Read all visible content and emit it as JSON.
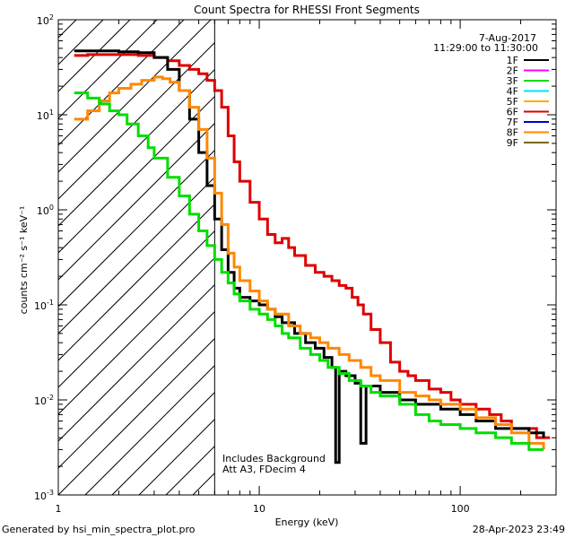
{
  "chart_data": {
    "type": "line",
    "title": "Count Spectra for RHESSI Front Segments",
    "xlabel": "Energy (keV)",
    "ylabel": "counts cm⁻² s⁻¹ keV⁻¹",
    "xscale": "log",
    "yscale": "log",
    "xlim": [
      1,
      300
    ],
    "ylim": [
      0.001,
      100
    ],
    "x_tick_labels": [
      "1",
      "10",
      "100"
    ],
    "y_tick_labels": [
      {
        "base": "10",
        "exp": "-3",
        "value": 0.001
      },
      {
        "base": "10",
        "exp": "-2",
        "value": 0.01
      },
      {
        "base": "10",
        "exp": "-1",
        "value": 0.1
      },
      {
        "base": "10",
        "exp": "0",
        "value": 1
      },
      {
        "base": "10",
        "exp": "1",
        "value": 10
      },
      {
        "base": "10",
        "exp": "2",
        "value": 100
      }
    ],
    "shaded_region": {
      "x_max_kev": 6.0,
      "style": "diagonal-hatch"
    },
    "date_label": "7-Aug-2017",
    "time_range": "11:29:00 to 11:30:00",
    "annotations": [
      "Includes Background",
      "Att A3, FDecim  4"
    ],
    "legend_position": "top-right",
    "legend": [
      {
        "name": "1F",
        "color": "#000000"
      },
      {
        "name": "2F",
        "color": "#ff00ff"
      },
      {
        "name": "3F",
        "color": "#00dd00"
      },
      {
        "name": "4F",
        "color": "#00e5ff"
      },
      {
        "name": "5F",
        "color": "#ffaa00"
      },
      {
        "name": "6F",
        "color": "#dd0000"
      },
      {
        "name": "7F",
        "color": "#0000cc"
      },
      {
        "name": "8F",
        "color": "#ff8800"
      },
      {
        "name": "9F",
        "color": "#7a6a00"
      }
    ],
    "series": [
      {
        "name": "6F",
        "color": "#dd0000",
        "points": [
          [
            1.2,
            42
          ],
          [
            1.4,
            43
          ],
          [
            1.7,
            43
          ],
          [
            2.0,
            43
          ],
          [
            2.5,
            42
          ],
          [
            3.0,
            40
          ],
          [
            3.5,
            37
          ],
          [
            4.0,
            33
          ],
          [
            4.5,
            30
          ],
          [
            5.0,
            27
          ],
          [
            5.5,
            23
          ],
          [
            6.0,
            18
          ],
          [
            6.5,
            12
          ],
          [
            7.0,
            6
          ],
          [
            7.5,
            3.2
          ],
          [
            8.0,
            2.0
          ],
          [
            9.0,
            1.2
          ],
          [
            10.0,
            0.8
          ],
          [
            11.0,
            0.55
          ],
          [
            12.0,
            0.45
          ],
          [
            13.0,
            0.5
          ],
          [
            14.0,
            0.4
          ],
          [
            15.0,
            0.33
          ],
          [
            17.0,
            0.26
          ],
          [
            19.0,
            0.22
          ],
          [
            21.0,
            0.2
          ],
          [
            23.0,
            0.18
          ],
          [
            25.0,
            0.16
          ],
          [
            27.0,
            0.15
          ],
          [
            29.0,
            0.12
          ],
          [
            31.0,
            0.1
          ],
          [
            33.0,
            0.08
          ],
          [
            36.0,
            0.055
          ],
          [
            40.0,
            0.04
          ],
          [
            45.0,
            0.025
          ],
          [
            50.0,
            0.02
          ],
          [
            55.0,
            0.018
          ],
          [
            60.0,
            0.016
          ],
          [
            70.0,
            0.013
          ],
          [
            80.0,
            0.012
          ],
          [
            90.0,
            0.01
          ],
          [
            100.0,
            0.009
          ],
          [
            120.0,
            0.008
          ],
          [
            140.0,
            0.007
          ],
          [
            160.0,
            0.006
          ],
          [
            180.0,
            0.005
          ],
          [
            200.0,
            0.005
          ],
          [
            240.0,
            0.004
          ],
          [
            280.0,
            0.004
          ]
        ]
      },
      {
        "name": "1F",
        "color": "#000000",
        "points": [
          [
            1.2,
            47
          ],
          [
            1.4,
            47
          ],
          [
            1.7,
            47
          ],
          [
            2.0,
            46
          ],
          [
            2.5,
            45
          ],
          [
            3.0,
            40
          ],
          [
            3.5,
            30
          ],
          [
            4.0,
            18
          ],
          [
            4.5,
            9
          ],
          [
            5.0,
            4
          ],
          [
            5.5,
            1.8
          ],
          [
            6.0,
            0.8
          ],
          [
            6.5,
            0.38
          ],
          [
            7.0,
            0.22
          ],
          [
            7.5,
            0.15
          ],
          [
            8.0,
            0.12
          ],
          [
            9.0,
            0.11
          ],
          [
            10.0,
            0.1
          ],
          [
            11.0,
            0.09
          ],
          [
            12.0,
            0.075
          ],
          [
            13.0,
            0.065
          ],
          [
            15.0,
            0.05
          ],
          [
            17.0,
            0.04
          ],
          [
            19.0,
            0.035
          ],
          [
            21.0,
            0.028
          ],
          [
            23.0,
            0.022
          ],
          [
            24.0,
            0.0022
          ],
          [
            25.0,
            0.02
          ],
          [
            27.0,
            0.018
          ],
          [
            30.0,
            0.015
          ],
          [
            32.0,
            0.0035
          ],
          [
            34.0,
            0.014
          ],
          [
            40.0,
            0.012
          ],
          [
            50.0,
            0.01
          ],
          [
            60.0,
            0.009
          ],
          [
            70.0,
            0.009
          ],
          [
            80.0,
            0.008
          ],
          [
            100.0,
            0.007
          ],
          [
            120.0,
            0.006
          ],
          [
            150.0,
            0.005
          ],
          [
            180.0,
            0.005
          ],
          [
            220.0,
            0.0045
          ],
          [
            260.0,
            0.004
          ]
        ]
      },
      {
        "name": "8F",
        "color": "#ff8800",
        "points": [
          [
            1.2,
            9
          ],
          [
            1.4,
            11
          ],
          [
            1.6,
            14
          ],
          [
            1.8,
            17
          ],
          [
            2.0,
            19
          ],
          [
            2.3,
            21
          ],
          [
            2.6,
            23
          ],
          [
            3.0,
            25
          ],
          [
            3.3,
            24
          ],
          [
            3.6,
            22
          ],
          [
            4.0,
            18
          ],
          [
            4.5,
            12
          ],
          [
            5.0,
            7
          ],
          [
            5.5,
            3.5
          ],
          [
            6.0,
            1.5
          ],
          [
            6.5,
            0.7
          ],
          [
            7.0,
            0.35
          ],
          [
            7.5,
            0.25
          ],
          [
            8.0,
            0.18
          ],
          [
            9.0,
            0.14
          ],
          [
            10.0,
            0.11
          ],
          [
            11.0,
            0.09
          ],
          [
            12.0,
            0.08
          ],
          [
            14.0,
            0.06
          ],
          [
            16.0,
            0.05
          ],
          [
            18.0,
            0.045
          ],
          [
            20.0,
            0.04
          ],
          [
            22.0,
            0.035
          ],
          [
            25.0,
            0.03
          ],
          [
            28.0,
            0.026
          ],
          [
            32.0,
            0.022
          ],
          [
            36.0,
            0.018
          ],
          [
            40.0,
            0.016
          ],
          [
            50.0,
            0.012
          ],
          [
            60.0,
            0.011
          ],
          [
            70.0,
            0.01
          ],
          [
            80.0,
            0.009
          ],
          [
            100.0,
            0.008
          ],
          [
            120.0,
            0.0065
          ],
          [
            150.0,
            0.0055
          ],
          [
            180.0,
            0.0045
          ],
          [
            220.0,
            0.0035
          ],
          [
            260.0,
            0.003
          ]
        ]
      },
      {
        "name": "3F",
        "color": "#00dd00",
        "points": [
          [
            1.2,
            17
          ],
          [
            1.4,
            15
          ],
          [
            1.6,
            13
          ],
          [
            1.8,
            11
          ],
          [
            2.0,
            10
          ],
          [
            2.2,
            8
          ],
          [
            2.5,
            6
          ],
          [
            2.8,
            4.5
          ],
          [
            3.0,
            3.5
          ],
          [
            3.5,
            2.2
          ],
          [
            4.0,
            1.4
          ],
          [
            4.5,
            0.9
          ],
          [
            5.0,
            0.6
          ],
          [
            5.5,
            0.42
          ],
          [
            6.0,
            0.3
          ],
          [
            6.5,
            0.22
          ],
          [
            7.0,
            0.17
          ],
          [
            7.5,
            0.13
          ],
          [
            8.0,
            0.11
          ],
          [
            9.0,
            0.09
          ],
          [
            10.0,
            0.08
          ],
          [
            11.0,
            0.07
          ],
          [
            12.0,
            0.06
          ],
          [
            13.0,
            0.05
          ],
          [
            14.0,
            0.045
          ],
          [
            16.0,
            0.035
          ],
          [
            18.0,
            0.03
          ],
          [
            20.0,
            0.026
          ],
          [
            22.0,
            0.022
          ],
          [
            25.0,
            0.019
          ],
          [
            28.0,
            0.016
          ],
          [
            32.0,
            0.014
          ],
          [
            36.0,
            0.012
          ],
          [
            40.0,
            0.011
          ],
          [
            50.0,
            0.009
          ],
          [
            60.0,
            0.007
          ],
          [
            70.0,
            0.006
          ],
          [
            80.0,
            0.0055
          ],
          [
            100.0,
            0.005
          ],
          [
            120.0,
            0.0045
          ],
          [
            150.0,
            0.004
          ],
          [
            180.0,
            0.0035
          ],
          [
            220.0,
            0.003
          ],
          [
            260.0,
            0.003
          ]
        ]
      }
    ]
  },
  "footer": {
    "left": "Generated by hsi_min_spectra_plot.pro",
    "right": "28-Apr-2023 23:49"
  }
}
